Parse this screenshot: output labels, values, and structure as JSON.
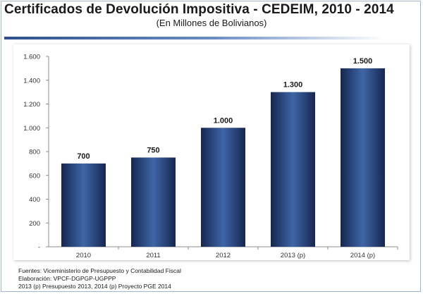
{
  "title": "Certificados de Devolución Impositiva - CEDEIM, 2010 - 2014",
  "subtitle": "(En Millones de Bolivianos)",
  "notes": [
    "Fuentes: Viceministerio de Presupuesto y Contabilidad Fiscal",
    "Elaboración: VPCF-DGPGP-UGPPP",
    "2013 (p) Presupuesto 2013, 2014 (p) Proyecto PGE 2014"
  ],
  "chart_data": {
    "type": "bar",
    "categories": [
      "2010",
      "2011",
      "2012",
      "2013 (p)",
      "2014 (p)"
    ],
    "values": [
      700,
      750,
      1000,
      1300,
      1500
    ],
    "value_labels": [
      "700",
      "750",
      "1.000",
      "1.300",
      "1.500"
    ],
    "yticks": [
      0,
      200,
      400,
      600,
      800,
      1000,
      1200,
      1400,
      1600
    ],
    "ytick_labels": [
      "-",
      "200",
      "400",
      "600",
      "800",
      "1.000",
      "1.200",
      "1.400",
      "1.600"
    ],
    "ylim": [
      0,
      1600
    ],
    "xlabel": "",
    "ylabel": "",
    "grid": false,
    "legend": "none",
    "colors": {
      "bar_dark": "#16264f",
      "bar_light": "#3f66a8",
      "axis": "#8c8c8c"
    }
  }
}
